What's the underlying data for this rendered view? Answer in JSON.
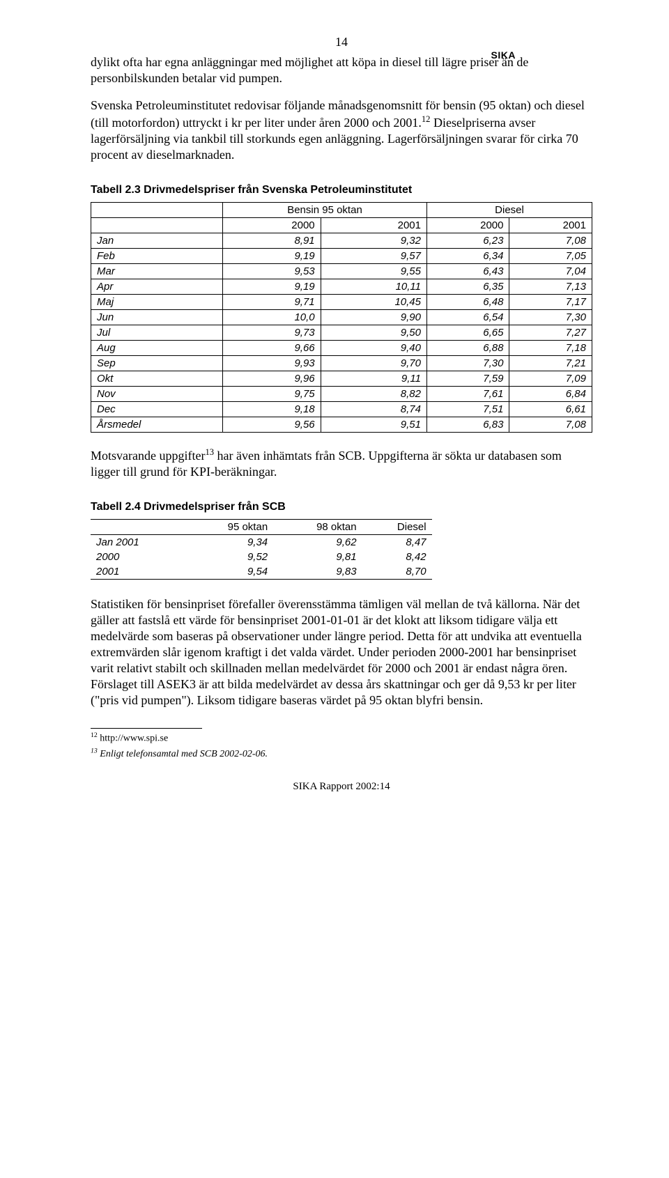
{
  "header": {
    "page_number": "14",
    "brand": "SIKA"
  },
  "paragraphs": {
    "p1": "dylikt ofta har egna anläggningar med möjlighet att köpa in diesel till lägre priser än de personbilskunden betalar vid pumpen.",
    "p2a": "Svenska Petroleuminstitutet redovisar följande månadsgenomsnitt för bensin (95 oktan) och diesel (till motorfordon) uttryckt i kr per liter under åren 2000 och 2001.",
    "p2b": " Dieselpriserna avser lagerförsäljning via tankbil till storkunds egen anläggning. Lagerförsäljningen svarar för cirka 70 procent av dieselmarknaden.",
    "p3a": "Motsvarande uppgifter",
    "p3b": " har även inhämtats från SCB. Uppgifterna är sökta ur databasen som ligger till grund för KPI-beräkningar.",
    "p4": "Statistiken för bensinpriset förefaller överensstämma tämligen väl mellan de två källorna. När det gäller att fastslå ett värde för bensinpriset 2001-01-01 är det klokt att liksom tidigare välja ett medelvärde som baseras på observationer under längre period. Detta för att undvika att eventuella extremvärden slår igenom kraftigt i det valda värdet. Under perioden 2000-2001 har bensinpriset varit relativt stabilt och skillnaden mellan medelvärdet för 2000 och 2001 är endast några ören. Förslaget till ASEK3 är att bilda medelvärdet av dessa års skattningar och ger då 9,53 kr per liter (\"pris vid pumpen\"). Liksom tidigare baseras värdet på 95 oktan blyfri bensin."
  },
  "table23": {
    "title": "Tabell 2.3 Drivmedelspriser från Svenska Petroleuminstitutet",
    "group_headers": [
      "Bensin 95 oktan",
      "Diesel"
    ],
    "year_headers": [
      "2000",
      "2001",
      "2000",
      "2001"
    ],
    "rows": [
      {
        "label": "Jan",
        "v": [
          "8,91",
          "9,32",
          "6,23",
          "7,08"
        ]
      },
      {
        "label": "Feb",
        "v": [
          "9,19",
          "9,57",
          "6,34",
          "7,05"
        ]
      },
      {
        "label": "Mar",
        "v": [
          "9,53",
          "9,55",
          "6,43",
          "7,04"
        ]
      },
      {
        "label": "Apr",
        "v": [
          "9,19",
          "10,11",
          "6,35",
          "7,13"
        ]
      },
      {
        "label": "Maj",
        "v": [
          "9,71",
          "10,45",
          "6,48",
          "7,17"
        ]
      },
      {
        "label": "Jun",
        "v": [
          "10,0",
          "9,90",
          "6,54",
          "7,30"
        ]
      },
      {
        "label": "Jul",
        "v": [
          "9,73",
          "9,50",
          "6,65",
          "7,27"
        ]
      },
      {
        "label": "Aug",
        "v": [
          "9,66",
          "9,40",
          "6,88",
          "7,18"
        ]
      },
      {
        "label": "Sep",
        "v": [
          "9,93",
          "9,70",
          "7,30",
          "7,21"
        ]
      },
      {
        "label": "Okt",
        "v": [
          "9,96",
          "9,11",
          "7,59",
          "7,09"
        ]
      },
      {
        "label": "Nov",
        "v": [
          "9,75",
          "8,82",
          "7,61",
          "6,84"
        ]
      },
      {
        "label": "Dec",
        "v": [
          "9,18",
          "8,74",
          "7,51",
          "6,61"
        ]
      },
      {
        "label": "Årsmedel",
        "v": [
          "9,56",
          "9,51",
          "6,83",
          "7,08"
        ]
      }
    ]
  },
  "table24": {
    "title": "Tabell 2.4 Drivmedelspriser från SCB",
    "headers": [
      "95 oktan",
      "98 oktan",
      "Diesel"
    ],
    "rows": [
      {
        "label": "Jan 2001",
        "v": [
          "9,34",
          "9,62",
          "8,47"
        ]
      },
      {
        "label": "2000",
        "v": [
          "9,52",
          "9,81",
          "8,42"
        ]
      },
      {
        "label": "2001",
        "v": [
          "9,54",
          "9,83",
          "8,70"
        ]
      }
    ]
  },
  "footnotes": {
    "f12_a": "12",
    "f12_b": " http://www.spi.se",
    "f13_a": "13",
    "f13_b": " Enligt telefonsamtal med SCB 2002-02-06.",
    "sup12": "12",
    "sup13": "13"
  },
  "footer": "SIKA Rapport 2002:14"
}
